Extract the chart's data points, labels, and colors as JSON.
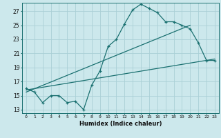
{
  "xlabel": "Humidex (Indice chaleur)",
  "bg_color": "#cce8ec",
  "grid_color": "#aad0d6",
  "line_color": "#1a7070",
  "xlim": [
    -0.5,
    23.5
  ],
  "ylim": [
    12.5,
    28.2
  ],
  "xticks": [
    0,
    1,
    2,
    3,
    4,
    5,
    6,
    7,
    8,
    9,
    10,
    11,
    12,
    13,
    14,
    15,
    16,
    17,
    18,
    19,
    20,
    21,
    22,
    23
  ],
  "yticks": [
    13,
    15,
    17,
    19,
    21,
    23,
    25,
    27
  ],
  "curve_x": [
    0,
    1,
    2,
    3,
    4,
    5,
    6,
    7,
    8,
    9,
    10,
    11,
    12,
    13,
    14,
    15,
    16,
    17,
    18,
    19,
    20,
    21,
    22,
    23
  ],
  "curve_y": [
    16.0,
    15.5,
    14.0,
    15.0,
    15.0,
    14.0,
    14.2,
    13.0,
    16.5,
    18.5,
    22.0,
    23.0,
    25.2,
    27.2,
    28.0,
    27.4,
    26.8,
    25.5,
    25.5,
    25.0,
    24.5,
    22.5,
    20.0,
    20.0
  ],
  "line1_x": [
    0,
    23
  ],
  "line1_y": [
    15.8,
    20.2
  ],
  "line2_x": [
    0,
    20
  ],
  "line2_y": [
    15.5,
    25.0
  ]
}
